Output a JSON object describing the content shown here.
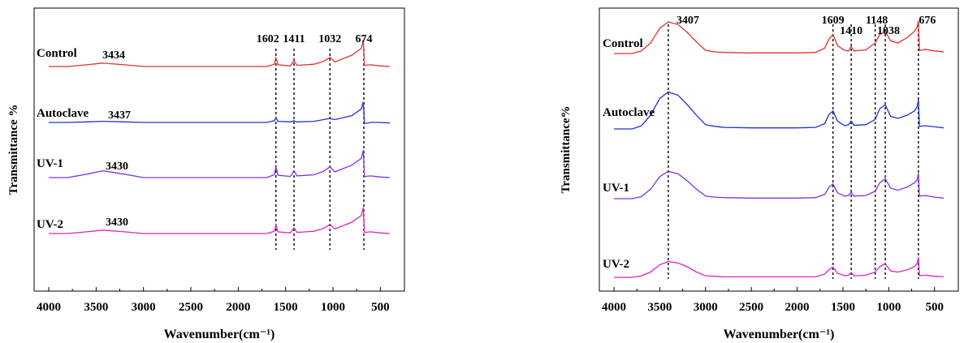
{
  "chart_data": [
    {
      "type": "line",
      "xlabel": "Wavenumber(cm⁻¹)",
      "ylabel": "Transmittance %",
      "xlim": [
        4000,
        400
      ],
      "x_reversed": true,
      "x_ticks": [
        4000,
        3500,
        3000,
        2500,
        2000,
        1500,
        1000,
        500
      ],
      "y_ticks": [],
      "grid": false,
      "legend": "none",
      "peak_lines": [
        1602,
        1411,
        1032,
        674
      ],
      "series": [
        {
          "name": "Control",
          "color": "#e03030",
          "peak_label": "3434",
          "peaks": [
            3434,
            1602,
            1411,
            1032,
            674
          ],
          "x": [
            4000,
            3800,
            3600,
            3434,
            3200,
            3000,
            2500,
            2000,
            1700,
            1620,
            1602,
            1580,
            1450,
            1411,
            1380,
            1200,
            1100,
            1032,
            980,
            800,
            700,
            680,
            674,
            668,
            600,
            500,
            400
          ],
          "y": [
            0.0,
            0.0,
            0.3,
            0.6,
            0.3,
            0.0,
            0.0,
            0.0,
            0.0,
            0.4,
            1.5,
            0.3,
            0.1,
            1.0,
            0.2,
            0.4,
            0.9,
            1.6,
            0.8,
            2.0,
            3.2,
            4.6,
            2.6,
            0.2,
            0.3,
            0.1,
            0.0
          ]
        },
        {
          "name": "Autoclave",
          "color": "#2030d8",
          "peak_label": "3437",
          "peaks": [
            3437
          ],
          "x": [
            4000,
            3800,
            3600,
            3437,
            3200,
            3000,
            2500,
            2000,
            1700,
            1620,
            1602,
            1580,
            1450,
            1411,
            1380,
            1200,
            1100,
            1032,
            980,
            800,
            700,
            680,
            674,
            668,
            600,
            500,
            400
          ],
          "y": [
            0.0,
            0.0,
            0.1,
            0.2,
            0.1,
            0.0,
            0.0,
            0.0,
            0.0,
            0.3,
            0.8,
            0.2,
            0.1,
            0.3,
            0.1,
            0.2,
            0.5,
            0.7,
            0.5,
            1.2,
            2.4,
            3.6,
            2.0,
            -0.2,
            0.0,
            0.0,
            -0.1
          ]
        },
        {
          "name": "UV-1",
          "color": "#8030e8",
          "peak_label": "3430",
          "peaks": [
            3430
          ],
          "x": [
            4000,
            3800,
            3600,
            3430,
            3200,
            3000,
            2500,
            2000,
            1700,
            1620,
            1602,
            1580,
            1450,
            1411,
            1380,
            1200,
            1100,
            1032,
            980,
            800,
            700,
            680,
            674,
            668,
            600,
            500,
            400
          ],
          "y": [
            0.0,
            0.0,
            0.6,
            1.2,
            0.6,
            0.0,
            0.0,
            0.0,
            0.0,
            0.5,
            1.9,
            0.4,
            0.2,
            1.2,
            0.3,
            0.5,
            1.1,
            1.9,
            1.0,
            2.2,
            3.4,
            4.8,
            2.8,
            0.2,
            0.3,
            0.1,
            0.0
          ]
        },
        {
          "name": "UV-2",
          "color": "#e020c0",
          "peak_label": "3430",
          "peaks": [
            3430
          ],
          "x": [
            4000,
            3800,
            3600,
            3430,
            3200,
            3000,
            2500,
            2000,
            1700,
            1620,
            1602,
            1580,
            1450,
            1411,
            1380,
            1200,
            1100,
            1032,
            980,
            800,
            700,
            680,
            674,
            668,
            600,
            500,
            400
          ],
          "y": [
            0.0,
            0.0,
            0.3,
            0.6,
            0.3,
            0.0,
            0.0,
            0.0,
            0.0,
            0.4,
            1.5,
            0.3,
            0.1,
            1.0,
            0.2,
            0.4,
            0.9,
            1.6,
            0.8,
            2.0,
            3.2,
            4.6,
            2.6,
            0.2,
            0.3,
            0.1,
            0.0
          ]
        }
      ],
      "peak_labels": [
        {
          "text": "1602",
          "x": 1602
        },
        {
          "text": "1411",
          "x": 1411
        },
        {
          "text": "1032",
          "x": 1032
        },
        {
          "text": "674",
          "x": 674
        }
      ]
    },
    {
      "type": "line",
      "xlabel": "Wavenumber(cm⁻¹)",
      "ylabel": "Transmittance%",
      "xlim": [
        4000,
        400
      ],
      "x_reversed": true,
      "x_ticks": [
        4000,
        3500,
        3000,
        2500,
        2000,
        1500,
        1000,
        500
      ],
      "y_ticks": [],
      "grid": false,
      "legend": "none",
      "peak_lines": [
        3407,
        1609,
        1410,
        1148,
        1038,
        676
      ],
      "series": [
        {
          "name": "Control",
          "color": "#e03030",
          "x": [
            4000,
            3800,
            3700,
            3600,
            3500,
            3407,
            3300,
            3200,
            3100,
            3000,
            2900,
            2800,
            2500,
            2000,
            1800,
            1700,
            1650,
            1609,
            1560,
            1480,
            1440,
            1410,
            1380,
            1250,
            1148,
            1100,
            1038,
            980,
            900,
            800,
            720,
            690,
            676,
            665,
            600,
            500,
            400
          ],
          "y": [
            0.0,
            0.0,
            0.5,
            2.0,
            4.8,
            6.0,
            5.5,
            4.0,
            2.2,
            0.6,
            0.3,
            0.2,
            0.1,
            0.1,
            0.2,
            1.0,
            2.8,
            3.6,
            1.5,
            0.6,
            0.5,
            1.3,
            0.5,
            0.7,
            2.0,
            3.6,
            4.2,
            2.4,
            2.0,
            3.0,
            4.2,
            5.0,
            6.2,
            0.6,
            0.8,
            0.5,
            0.3
          ]
        },
        {
          "name": "Autoclave",
          "color": "#2030d8",
          "x": [
            4000,
            3800,
            3700,
            3600,
            3500,
            3407,
            3300,
            3200,
            3100,
            3000,
            2900,
            2800,
            2500,
            2000,
            1800,
            1700,
            1650,
            1609,
            1560,
            1480,
            1440,
            1410,
            1380,
            1250,
            1148,
            1100,
            1038,
            980,
            900,
            800,
            720,
            690,
            676,
            665,
            600,
            500,
            400
          ],
          "y": [
            0.0,
            0.0,
            0.6,
            2.6,
            5.8,
            7.0,
            6.4,
            4.6,
            2.6,
            0.8,
            0.5,
            0.3,
            0.2,
            0.2,
            0.3,
            1.0,
            2.8,
            3.4,
            1.5,
            0.6,
            0.8,
            1.5,
            0.7,
            0.8,
            1.8,
            3.8,
            4.6,
            2.4,
            2.0,
            2.6,
            3.4,
            4.2,
            5.6,
            0.5,
            0.6,
            0.4,
            0.2
          ]
        },
        {
          "name": "UV-1",
          "color": "#8030e8",
          "x": [
            4000,
            3800,
            3700,
            3600,
            3500,
            3407,
            3300,
            3200,
            3100,
            3000,
            2900,
            2800,
            2500,
            2000,
            1800,
            1700,
            1650,
            1609,
            1560,
            1480,
            1440,
            1410,
            1380,
            1250,
            1148,
            1100,
            1038,
            980,
            900,
            800,
            720,
            690,
            676,
            665,
            600,
            500,
            400
          ],
          "y": [
            0.0,
            0.0,
            0.4,
            1.8,
            4.2,
            5.2,
            4.7,
            3.4,
            1.8,
            0.5,
            0.3,
            0.2,
            0.1,
            0.1,
            0.2,
            0.8,
            2.2,
            2.8,
            1.1,
            0.5,
            0.6,
            1.2,
            0.5,
            0.6,
            1.4,
            3.0,
            3.8,
            2.0,
            1.6,
            2.2,
            3.0,
            3.6,
            4.8,
            0.5,
            0.6,
            0.3,
            0.1
          ]
        },
        {
          "name": "UV-2",
          "color": "#e020c0",
          "x": [
            4000,
            3800,
            3700,
            3600,
            3500,
            3407,
            3300,
            3200,
            3100,
            3000,
            2900,
            2800,
            2500,
            2000,
            1800,
            1700,
            1650,
            1609,
            1560,
            1480,
            1440,
            1410,
            1380,
            1250,
            1148,
            1100,
            1038,
            980,
            900,
            800,
            720,
            690,
            676,
            665,
            600,
            500,
            400
          ],
          "y": [
            0.0,
            0.0,
            0.3,
            1.0,
            2.4,
            3.0,
            2.7,
            2.0,
            1.0,
            0.3,
            0.2,
            0.1,
            0.1,
            0.1,
            0.1,
            0.6,
            1.5,
            1.9,
            0.8,
            0.3,
            0.4,
            0.9,
            0.3,
            0.4,
            1.0,
            2.0,
            2.6,
            1.2,
            1.0,
            1.4,
            2.0,
            2.6,
            3.8,
            0.3,
            0.4,
            0.2,
            0.1
          ]
        }
      ],
      "peak_labels": [
        {
          "text": "3407",
          "x": 3407
        },
        {
          "text": "1609",
          "x": 1609
        },
        {
          "text": "1410",
          "x": 1410
        },
        {
          "text": "1148",
          "x": 1148
        },
        {
          "text": "1038",
          "x": 1038
        },
        {
          "text": "676",
          "x": 676
        }
      ]
    }
  ]
}
